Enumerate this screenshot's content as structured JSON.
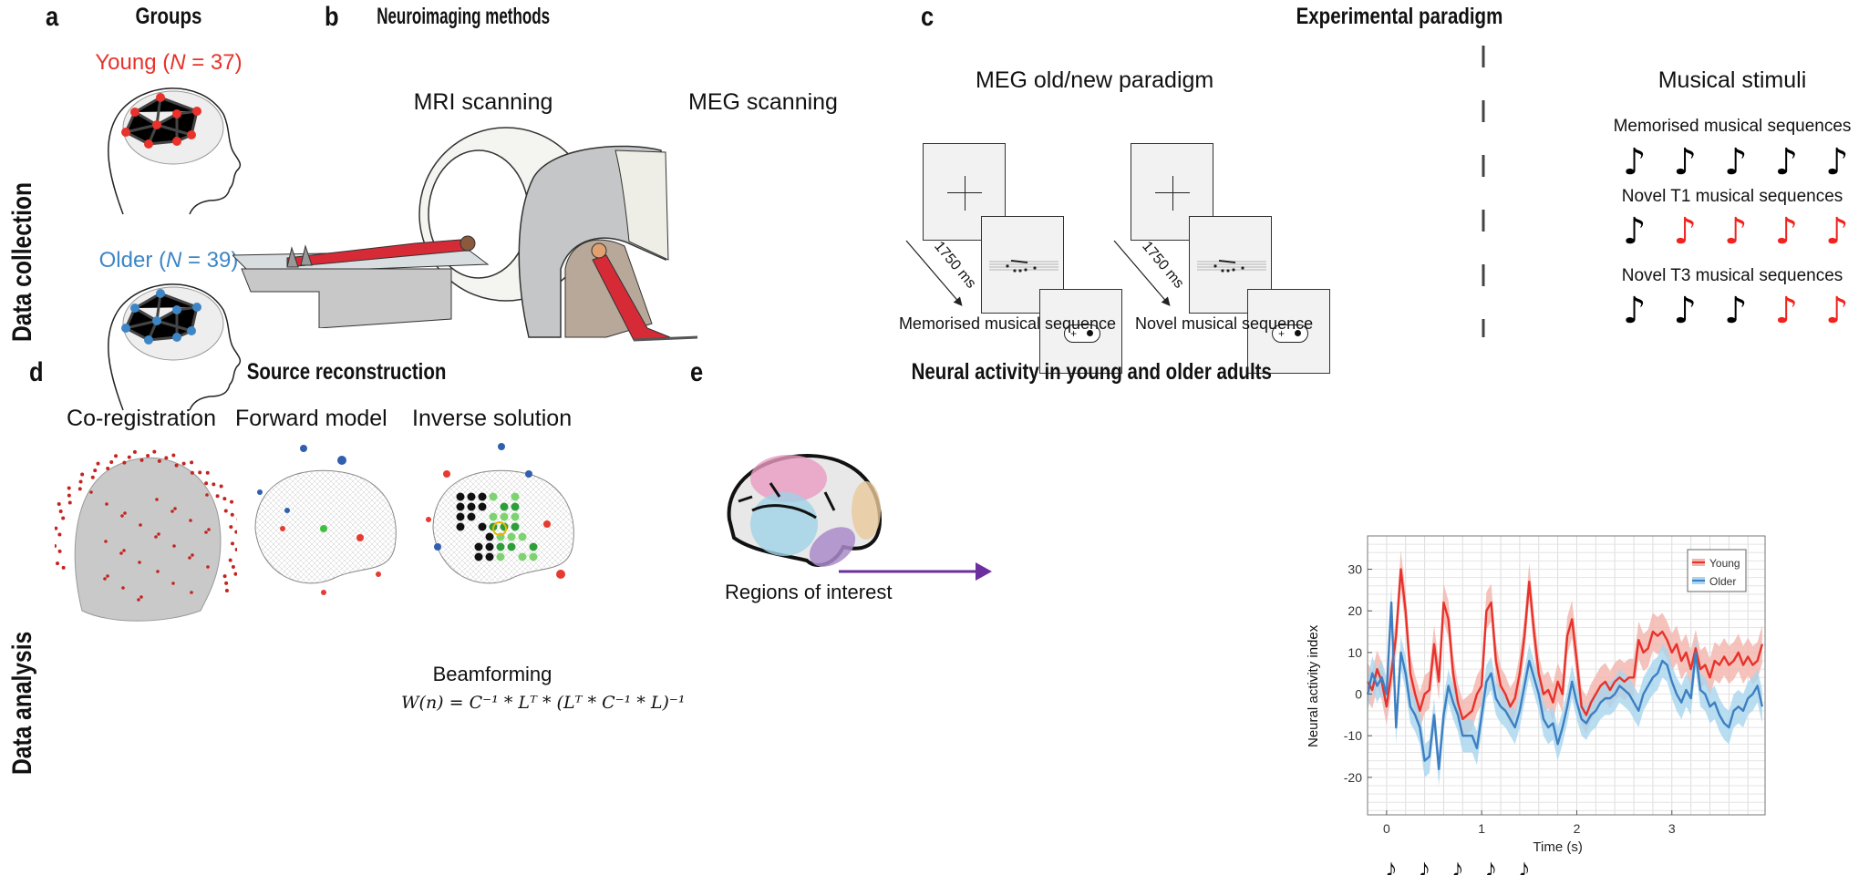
{
  "row_labels": {
    "top": "Data collection",
    "bottom": "Data analysis"
  },
  "panel_a": {
    "letter": "a",
    "title": "Groups",
    "groups": [
      {
        "label_prefix": "Young (",
        "label_n": "N",
        "label_suffix": " = 37)",
        "color": "#e8322b"
      },
      {
        "label_prefix": "Older (",
        "label_n": "N",
        "label_suffix": " = 39)",
        "color": "#3d86c6"
      }
    ]
  },
  "panel_b": {
    "letter": "b",
    "title": "Neuroimaging methods",
    "mri_label": "MRI scanning",
    "meg_label": "MEG scanning"
  },
  "panel_c": {
    "letter": "c",
    "title": "Experimental paradigm",
    "paradigm_title": "MEG old/new paradigm",
    "duration": "1750 ms",
    "sequences": [
      {
        "caption": "Memorised musical sequence"
      },
      {
        "caption": "Novel musical sequence"
      }
    ],
    "stimuli_title": "Musical stimuli",
    "stimuli": [
      {
        "label": "Memorised musical sequences",
        "notes": [
          "#000000",
          "#000000",
          "#000000",
          "#000000",
          "#000000"
        ]
      },
      {
        "label": "Novel T1 musical sequences",
        "notes": [
          "#000000",
          "#f0231e",
          "#f0231e",
          "#f0231e",
          "#f0231e"
        ]
      },
      {
        "label": "Novel T3 musical sequences",
        "notes": [
          "#000000",
          "#000000",
          "#000000",
          "#f0231e",
          "#f0231e"
        ]
      }
    ],
    "note_glyph": "♪"
  },
  "panel_d": {
    "letter": "d",
    "title": "Source reconstruction",
    "steps": [
      "Co-registration",
      "Forward model",
      "Inverse solution"
    ],
    "beamforming_label": "Beamforming",
    "formula": "W(n) = C⁻¹ * Lᵀ * (Lᵀ * C⁻¹ * L)⁻¹"
  },
  "panel_e": {
    "letter": "e",
    "title": "Neural activity in young and older adults",
    "roi_label": "Regions of interest",
    "arrow_color": "#6b2fa0",
    "roi_colors": {
      "pink": "#e89bc0",
      "blue": "#9fd2e6",
      "tan": "#e8c99a",
      "purple": "#a98bc9"
    }
  },
  "chart_data": {
    "type": "line",
    "xlabel": "Time (s)",
    "ylabel": "Neural activity index",
    "xlim": [
      -0.2,
      3.98
    ],
    "ylim": [
      -29,
      38
    ],
    "xticks": [
      0,
      1,
      2,
      3
    ],
    "yticks": [
      -20,
      -10,
      0,
      10,
      20,
      30
    ],
    "grid": true,
    "legend_position": "top-right",
    "x": [
      -0.2,
      -0.15,
      -0.1,
      -0.05,
      0,
      0.05,
      0.1,
      0.15,
      0.2,
      0.25,
      0.3,
      0.35,
      0.4,
      0.45,
      0.5,
      0.55,
      0.6,
      0.65,
      0.7,
      0.75,
      0.8,
      0.85,
      0.9,
      0.95,
      1,
      1.05,
      1.1,
      1.15,
      1.2,
      1.25,
      1.3,
      1.35,
      1.4,
      1.45,
      1.5,
      1.55,
      1.6,
      1.65,
      1.7,
      1.75,
      1.8,
      1.85,
      1.9,
      1.95,
      2,
      2.05,
      2.1,
      2.15,
      2.2,
      2.25,
      2.3,
      2.35,
      2.4,
      2.45,
      2.5,
      2.55,
      2.6,
      2.65,
      2.7,
      2.75,
      2.8,
      2.85,
      2.9,
      2.95,
      3,
      3.05,
      3.1,
      3.15,
      3.2,
      3.25,
      3.3,
      3.35,
      3.4,
      3.45,
      3.5,
      3.55,
      3.6,
      3.65,
      3.7,
      3.75,
      3.8,
      3.85,
      3.9,
      3.95
    ],
    "series": [
      {
        "name": "Young",
        "color": "#e8322b",
        "band_color": "#f2b3ab",
        "values": [
          3,
          1,
          6,
          3,
          -3,
          5,
          14,
          30,
          20,
          5,
          0,
          -4,
          0,
          1,
          12,
          3,
          22,
          18,
          5,
          -2,
          -6,
          -5,
          -4,
          0,
          2,
          20,
          22,
          8,
          2,
          0,
          -3,
          -1,
          5,
          14,
          27,
          15,
          5,
          0,
          1,
          -2,
          3,
          0,
          14,
          18,
          8,
          -3,
          -5,
          -2,
          0,
          2,
          3,
          1,
          3,
          4,
          3,
          4,
          4,
          13,
          10,
          11,
          15,
          14,
          15,
          13,
          10,
          12,
          8,
          10,
          6,
          11,
          6,
          7,
          4,
          8,
          7,
          9,
          7,
          8,
          10,
          7,
          9,
          7,
          8,
          12
        ]
      },
      {
        "name": "Older",
        "color": "#3d7fc2",
        "band_color": "#a9d6ee",
        "values": [
          0,
          5,
          2,
          4,
          0,
          22,
          -8,
          10,
          5,
          -3,
          -5,
          -8,
          -16,
          -15,
          -5,
          -18,
          -5,
          2,
          -2,
          -5,
          -10,
          -10,
          -10,
          -13,
          -5,
          3,
          5,
          -1,
          -3,
          -4,
          -6,
          -8,
          -4,
          2,
          8,
          4,
          0,
          -6,
          -8,
          -7,
          -12,
          -8,
          -3,
          3,
          -2,
          -6,
          -7,
          -5,
          -4,
          -2,
          -1,
          -1,
          0,
          2,
          1,
          0,
          -2,
          -4,
          0,
          2,
          4,
          5,
          8,
          7,
          3,
          0,
          -2,
          1,
          -1,
          10,
          1,
          0,
          -3,
          -2,
          -5,
          -7,
          -8,
          -4,
          -3,
          -4,
          -1,
          0,
          2,
          -3
        ]
      }
    ],
    "stimulus_notes": 5
  }
}
